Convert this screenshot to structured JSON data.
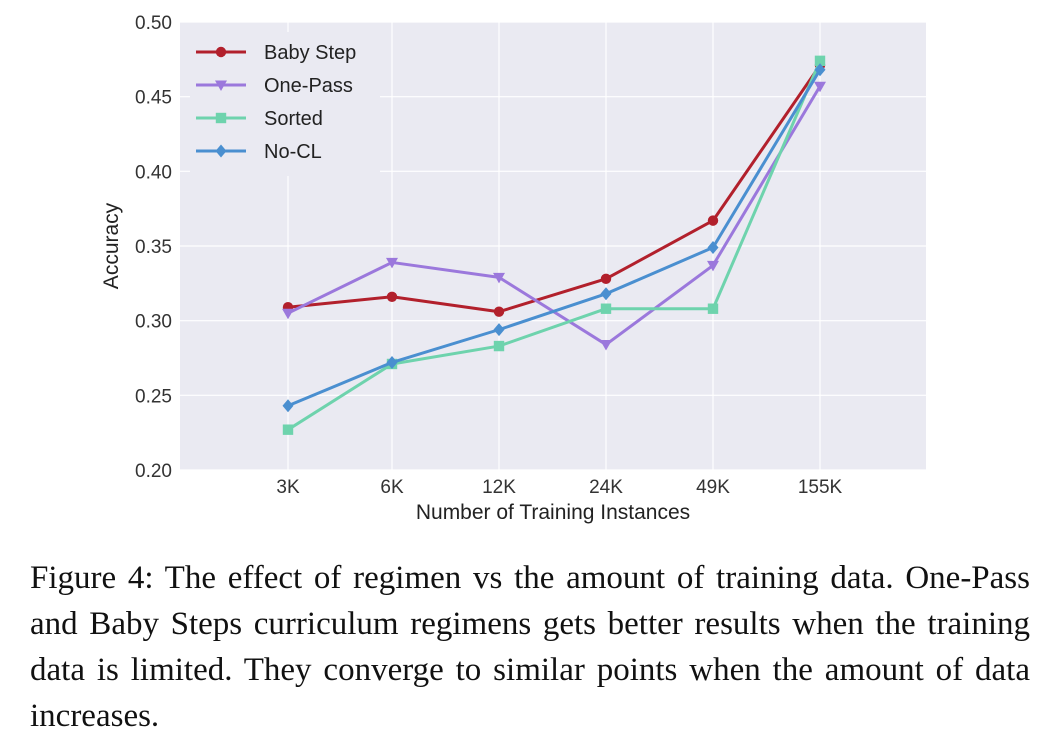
{
  "chart_data": {
    "type": "line",
    "title": "",
    "xlabel": "Number of Training Instances",
    "ylabel": "Accuracy",
    "categories": [
      "3K",
      "6K",
      "12K",
      "24K",
      "49K",
      "155K"
    ],
    "ylim": [
      0.2,
      0.5
    ],
    "yticks": [
      "0.20",
      "0.25",
      "0.30",
      "0.35",
      "0.40",
      "0.45",
      "0.50"
    ],
    "grid": true,
    "legend_position": "top-left",
    "series": [
      {
        "name": "Baby Step",
        "color": "#b2202c",
        "marker": "circle",
        "values": [
          0.309,
          0.316,
          0.306,
          0.328,
          0.367,
          0.471
        ]
      },
      {
        "name": "One-Pass",
        "color": "#9b78dc",
        "marker": "triangle-down",
        "values": [
          0.305,
          0.339,
          0.329,
          0.284,
          0.337,
          0.457
        ]
      },
      {
        "name": "Sorted",
        "color": "#6ed3ad",
        "marker": "square",
        "values": [
          0.227,
          0.271,
          0.283,
          0.308,
          0.308,
          0.474
        ]
      },
      {
        "name": "No-CL",
        "color": "#4a8fd0",
        "marker": "diamond",
        "values": [
          0.243,
          0.272,
          0.294,
          0.318,
          0.349,
          0.468
        ]
      }
    ]
  },
  "caption": "Figure 4: The effect of regimen vs the amount of training data. One-Pass and Baby Steps curriculum regimens gets better results when the training data is limited. They converge to similar points when the amount of data increases."
}
